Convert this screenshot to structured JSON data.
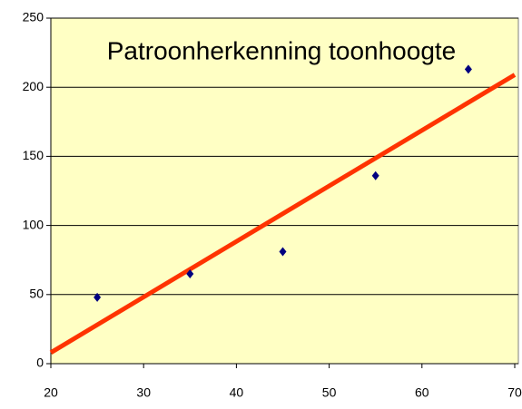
{
  "chart_data": {
    "type": "scatter",
    "title": "Patroonherkenning toonhoogte",
    "x": [
      25,
      35,
      45,
      55,
      65
    ],
    "values": [
      48,
      65,
      81,
      136,
      213
    ],
    "color": "#000080",
    "trendline": {
      "x": [
        20,
        70
      ],
      "values": [
        8,
        209
      ],
      "color": "#ff3300"
    },
    "xlim": [
      20,
      70
    ],
    "xticks": [
      20,
      30,
      40,
      50,
      60,
      70
    ],
    "ylim": [
      0,
      250
    ],
    "yticks": [
      0,
      50,
      100,
      150,
      200,
      250
    ],
    "grid": true,
    "background": "#ffffc4"
  }
}
